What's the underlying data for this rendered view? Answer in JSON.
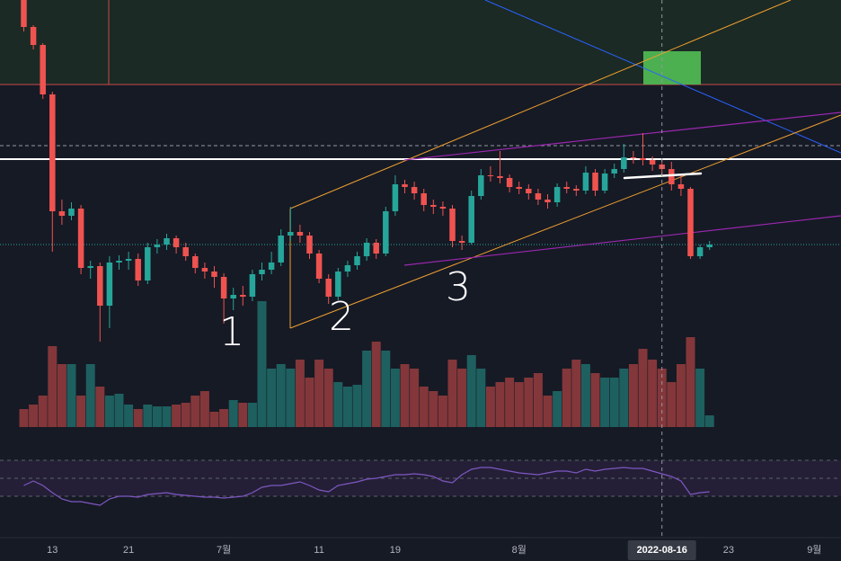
{
  "chart_data": {
    "type": "candlestick",
    "x": [
      -3,
      -2,
      -1,
      0,
      1,
      2,
      3,
      4,
      5,
      6,
      7,
      8,
      9,
      10,
      11,
      12,
      13,
      14,
      15,
      16,
      17,
      18,
      19,
      20,
      21,
      22,
      23,
      24,
      25,
      26,
      27,
      28,
      29,
      30,
      31,
      32,
      33,
      34,
      35,
      36,
      37,
      38,
      39,
      40,
      41,
      42,
      43,
      44,
      45,
      46,
      47,
      48,
      49,
      50,
      51,
      52,
      53,
      54,
      55,
      56,
      57,
      58,
      59,
      60,
      61,
      62,
      63,
      64,
      65,
      66,
      67,
      68,
      69
    ],
    "open": [
      400,
      370,
      350,
      295,
      165,
      160,
      168,
      102,
      104,
      60,
      108,
      110,
      112,
      88,
      125,
      128,
      135,
      125,
      115,
      102,
      98,
      92,
      68,
      72,
      70,
      95,
      100,
      108,
      138,
      142,
      138,
      118,
      90,
      70,
      98,
      105,
      115,
      130,
      118,
      165,
      195,
      192,
      185,
      172,
      170,
      168,
      132,
      130,
      182,
      205,
      204,
      202,
      192,
      190,
      185,
      178,
      175,
      192,
      190,
      188,
      208,
      188,
      207,
      212,
      225,
      224,
      222,
      217,
      212,
      195,
      190,
      115,
      125
    ],
    "high": [
      400,
      372,
      352,
      298,
      178,
      175,
      172,
      110,
      108,
      115,
      116,
      120,
      118,
      130,
      134,
      140,
      138,
      130,
      118,
      108,
      104,
      96,
      80,
      82,
      100,
      108,
      120,
      145,
      170,
      150,
      142,
      122,
      95,
      102,
      110,
      120,
      135,
      134,
      170,
      205,
      200,
      198,
      190,
      178,
      176,
      172,
      138,
      188,
      212,
      215,
      232,
      206,
      198,
      195,
      190,
      184,
      196,
      198,
      194,
      215,
      212,
      212,
      218,
      240,
      232,
      252,
      226,
      222,
      220,
      205,
      192,
      128,
      132
    ],
    "low": [
      365,
      345,
      290,
      120,
      150,
      155,
      95,
      90,
      20,
      35,
      100,
      100,
      82,
      84,
      118,
      122,
      118,
      110,
      96,
      90,
      80,
      40,
      55,
      60,
      65,
      88,
      95,
      104,
      132,
      130,
      112,
      85,
      62,
      66,
      92,
      100,
      110,
      112,
      115,
      160,
      185,
      178,
      165,
      162,
      160,
      125,
      122,
      128,
      178,
      198,
      196,
      186,
      184,
      178,
      172,
      168,
      170,
      185,
      182,
      184,
      182,
      185,
      202,
      208,
      218,
      216,
      210,
      205,
      188,
      182,
      112,
      112,
      122
    ],
    "close": [
      370,
      350,
      295,
      165,
      160,
      168,
      102,
      104,
      60,
      108,
      110,
      112,
      88,
      125,
      128,
      135,
      125,
      115,
      102,
      98,
      92,
      68,
      72,
      70,
      95,
      100,
      108,
      138,
      142,
      138,
      118,
      90,
      70,
      98,
      105,
      115,
      130,
      118,
      165,
      195,
      192,
      185,
      172,
      170,
      168,
      132,
      130,
      182,
      205,
      204,
      202,
      192,
      190,
      185,
      178,
      175,
      192,
      190,
      188,
      208,
      188,
      207,
      212,
      225,
      224,
      222,
      217,
      212,
      195,
      190,
      115,
      125,
      128
    ],
    "volume": [
      20,
      25,
      35,
      90,
      70,
      70,
      35,
      70,
      45,
      35,
      37,
      25,
      20,
      25,
      23,
      23,
      25,
      27,
      35,
      40,
      17,
      20,
      30,
      27,
      27,
      140,
      65,
      70,
      65,
      75,
      55,
      75,
      65,
      50,
      45,
      47,
      85,
      95,
      85,
      65,
      70,
      65,
      45,
      40,
      35,
      75,
      65,
      80,
      65,
      45,
      50,
      55,
      50,
      55,
      60,
      35,
      40,
      65,
      75,
      70,
      60,
      55,
      55,
      65,
      70,
      87,
      75,
      65,
      50,
      70,
      100,
      65,
      13
    ],
    "rsi": [
      42,
      47,
      42,
      34,
      27,
      24,
      24,
      22,
      20,
      27,
      30,
      30,
      29,
      32,
      33,
      34,
      32,
      31,
      30,
      29,
      29,
      28,
      29,
      30,
      34,
      40,
      42,
      42,
      44,
      46,
      42,
      37,
      35,
      42,
      44,
      46,
      49,
      50,
      52,
      54,
      54,
      55,
      54,
      52,
      47,
      45,
      54,
      60,
      62,
      62,
      60,
      58,
      56,
      55,
      54,
      56,
      58,
      58,
      56,
      60,
      58,
      60,
      61,
      62,
      61,
      61,
      58,
      55,
      52,
      47,
      32,
      34,
      35
    ],
    "xlim": [
      -5.5,
      82.8
    ],
    "ylim": [
      20,
      400
    ],
    "volume_lim": [
      0,
      150
    ],
    "rsi_lim": [
      0,
      100
    ],
    "rsi_ticks": [
      30,
      50,
      70
    ],
    "xticks": [
      {
        "value": 0,
        "label": "13"
      },
      {
        "value": 8,
        "label": "21"
      },
      {
        "value": 18,
        "label": "7월"
      },
      {
        "value": 28,
        "label": "11"
      },
      {
        "value": 36,
        "label": "19"
      },
      {
        "value": 49,
        "label": "8월"
      },
      {
        "value": 64,
        "label": "2022-08-16"
      },
      {
        "value": 71,
        "label": "23"
      },
      {
        "value": 80,
        "label": "9월"
      }
    ],
    "crosshair_x": 64,
    "up_color": "#26a69a",
    "down_color": "#ef5350",
    "rsi_color": "#7e57c2",
    "annotations": [
      "1",
      "2",
      "3"
    ]
  }
}
